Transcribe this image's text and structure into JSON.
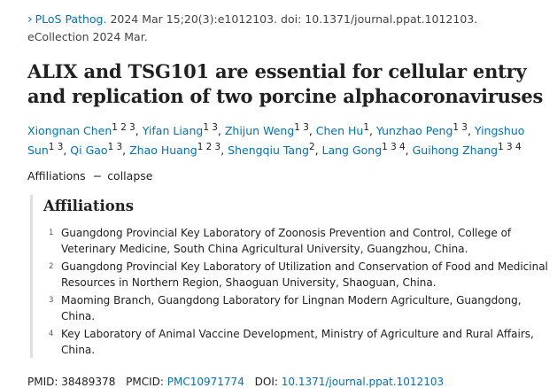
{
  "citation": {
    "journal": "PLoS Pathog.",
    "details": " 2024 Mar 15;20(3):e1012103. doi: 10.1371/journal.ppat.1012103.",
    "ecollection": "eCollection 2024 Mar."
  },
  "title": "ALIX and TSG101 are essential for cellular entry and replication of two porcine alphacoronaviruses",
  "authors": [
    {
      "name": "Xiongnan Chen",
      "affil": "1 2 3"
    },
    {
      "name": "Yifan Liang",
      "affil": "1 3"
    },
    {
      "name": "Zhijun Weng",
      "affil": "1 3"
    },
    {
      "name": "Chen Hu",
      "affil": "1"
    },
    {
      "name": "Yunzhao Peng",
      "affil": "1 3"
    },
    {
      "name": "Yingshuo Sun",
      "affil": "1 3"
    },
    {
      "name": "Qi Gao",
      "affil": "1 3"
    },
    {
      "name": "Zhao Huang",
      "affil": "1 2 3"
    },
    {
      "name": "Shengqiu Tang",
      "affil": "2"
    },
    {
      "name": "Lang Gong",
      "affil": "1 3 4"
    },
    {
      "name": "Guihong Zhang",
      "affil": "1 3 4"
    }
  ],
  "affiliations_toggle": {
    "label": "Affiliations",
    "dash": "−",
    "action": "collapse"
  },
  "affiliations_heading": "Affiliations",
  "affiliations": [
    {
      "num": "1",
      "text": "Guangdong Provincial Key Laboratory of Zoonosis Prevention and Control, College of Veterinary Medicine, South China Agricultural University, Guangzhou, China."
    },
    {
      "num": "2",
      "text": "Guangdong Provincial Key Laboratory of Utilization and Conservation of Food and Medicinal Resources in Northern Region, Shaoguan University, Shaoguan, China."
    },
    {
      "num": "3",
      "text": "Maoming Branch, Guangdong Laboratory for Lingnan Modern Agriculture, Guangdong, China."
    },
    {
      "num": "4",
      "text": "Key Laboratory of Animal Vaccine Development, Ministry of Agriculture and Rural Affairs, China."
    }
  ],
  "ids": {
    "pmid_label": "PMID:",
    "pmid": "38489378",
    "pmcid_label": "PMCID:",
    "pmcid": "PMC10971774",
    "doi_label": "DOI:",
    "doi": "10.1371/journal.ppat.1012103"
  },
  "icons": {
    "journal_chevron": "chevron-right-icon"
  },
  "colors": {
    "link": "#0071bc",
    "text": "#212121"
  }
}
